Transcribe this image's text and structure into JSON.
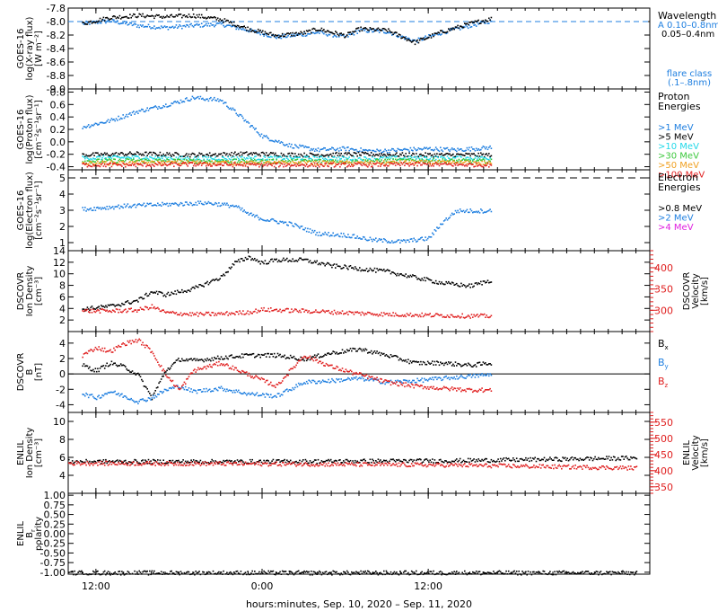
{
  "colors": {
    "black": "#000000",
    "blue": "#1f7fe0",
    "cyan": "#20d8e8",
    "green": "#3cc83c",
    "orange": "#f0a020",
    "red": "#e02020",
    "magenta": "#e020e0"
  },
  "footer": {
    "xlabel": "hours:minutes, Sep. 10, 2020 – Sep. 11, 2020"
  },
  "chart_data": [
    {
      "type": "scatter",
      "ylabel": "GOES-16 log(X-ray flux) [W m⁻²]",
      "ylabel_lines": [
        "GOES-16",
        "log(X-ray flux)",
        "[W m⁻²]"
      ],
      "ylim": [
        -9.0,
        -7.8
      ],
      "yticks": [
        "-7.8",
        "-8.0",
        "-8.2",
        "-8.4",
        "-8.6",
        "-8.8",
        "-9.0"
      ],
      "legend_title": [
        "Wavelength"
      ],
      "legend": [
        "A 0.10–0.8nm",
        "0.05–0.4nm"
      ],
      "annotation": [
        "flare class",
        "(.1–.8nm)"
      ],
      "flare_class_level": -8.0,
      "series": [
        {
          "name": "A 0.10–0.8nm",
          "color": "blue",
          "t": [
            -13,
            -11,
            -9,
            -7,
            -5,
            -3,
            -1,
            1,
            3,
            4,
            6,
            7,
            9,
            11,
            13,
            15,
            16.5
          ],
          "y": [
            -8.02,
            -7.98,
            -8.05,
            -8.08,
            -8.05,
            -8.03,
            -8.12,
            -8.22,
            -8.18,
            -8.15,
            -8.22,
            -8.12,
            -8.14,
            -8.28,
            -8.15,
            -8.05,
            -7.98
          ]
        },
        {
          "name": "0.05–0.4nm",
          "color": "black",
          "t": [
            -13,
            -11,
            -9,
            -7,
            -5,
            -3,
            -1,
            1,
            3,
            4,
            6,
            7,
            9,
            11,
            13,
            15,
            16.5
          ],
          "y": [
            -8.02,
            -7.93,
            -7.9,
            -7.92,
            -7.9,
            -7.96,
            -8.1,
            -8.2,
            -8.16,
            -8.1,
            -8.2,
            -8.1,
            -8.12,
            -8.3,
            -8.14,
            -8.02,
            -7.95
          ]
        }
      ]
    },
    {
      "type": "scatter",
      "ylabel": "GOES-16 log(Proton flux) [cm⁻²s⁻¹sr⁻¹]",
      "ylabel_lines": [
        "GOES-16",
        "log(Proton flux)",
        "[cm⁻²s⁻¹sr⁻¹]"
      ],
      "ylim": [
        -0.45,
        0.85
      ],
      "yticks": [
        "0.8",
        "0.6",
        "0.4",
        "0.2",
        "0.0",
        "-0.2",
        "-0.4"
      ],
      "legend_title": [
        "Proton",
        "Energies"
      ],
      "legend": [
        ">1 MeV",
        ">5 MeV",
        ">10 MeV",
        ">30 MeV",
        ">50 MeV",
        ">100 MeV"
      ],
      "series": [
        {
          "name": ">1 MeV",
          "color": "blue",
          "t": [
            -13,
            -11,
            -9,
            -7,
            -5,
            -3,
            -1.5,
            0,
            2,
            4,
            6,
            8,
            10,
            12,
            14,
            16.5
          ],
          "y": [
            0.25,
            0.35,
            0.5,
            0.6,
            0.72,
            0.68,
            0.4,
            0.1,
            -0.05,
            -0.12,
            -0.1,
            -0.14,
            -0.12,
            -0.1,
            -0.12,
            -0.08
          ]
        },
        {
          "name": ">5 MeV",
          "color": "black",
          "t": [
            -13,
            -9,
            -5,
            -1,
            3,
            7,
            11,
            16.5
          ],
          "y": [
            -0.2,
            -0.18,
            -0.2,
            -0.18,
            -0.2,
            -0.19,
            -0.2,
            -0.2
          ]
        },
        {
          "name": ">10 MeV",
          "color": "cyan",
          "t": [
            -13,
            -9,
            -5,
            -1,
            3,
            7,
            11,
            16.5
          ],
          "y": [
            -0.25,
            -0.24,
            -0.26,
            -0.25,
            -0.25,
            -0.26,
            -0.25,
            -0.25
          ]
        },
        {
          "name": ">30 MeV",
          "color": "green",
          "t": [
            -13,
            -9,
            -5,
            -1,
            3,
            7,
            11,
            16.5
          ],
          "y": [
            -0.3,
            -0.29,
            -0.3,
            -0.3,
            -0.3,
            -0.3,
            -0.29,
            -0.3
          ]
        },
        {
          "name": ">50 MeV",
          "color": "orange",
          "t": [
            -13,
            -9,
            -5,
            -1,
            3,
            7,
            11,
            16.5
          ],
          "y": [
            -0.33,
            -0.33,
            -0.32,
            -0.33,
            -0.33,
            -0.33,
            -0.32,
            -0.33
          ]
        },
        {
          "name": ">100 MeV",
          "color": "red",
          "t": [
            -13,
            -9,
            -5,
            -1,
            3,
            7,
            11,
            16.5
          ],
          "y": [
            -0.36,
            -0.36,
            -0.35,
            -0.36,
            -0.36,
            -0.36,
            -0.35,
            -0.36
          ]
        }
      ]
    },
    {
      "type": "scatter",
      "ylabel": "GOES-16 log(Electron flux) [cm⁻²s⁻¹sr⁻¹]",
      "ylabel_lines": [
        "GOES-16",
        "log(Electron flux)",
        "[cm⁻²s⁻¹sr⁻¹]"
      ],
      "ylim": [
        0.5,
        5.5
      ],
      "yticks": [
        "5",
        "4",
        "3",
        "2",
        "1"
      ],
      "legend_title": [
        "Electron",
        "Energies"
      ],
      "legend": [
        ">0.8 MeV",
        ">2 MeV",
        ">4 MeV"
      ],
      "threshold": 5.0,
      "series": [
        {
          "name": ">2 MeV",
          "color": "blue",
          "t": [
            -13,
            -10,
            -7,
            -4,
            -2,
            -1,
            0,
            2,
            3,
            4,
            6,
            8,
            10,
            12,
            13,
            14,
            16.5
          ],
          "y": [
            3.1,
            3.3,
            3.4,
            3.5,
            3.3,
            2.8,
            2.5,
            2.2,
            1.9,
            1.6,
            1.5,
            1.2,
            1.1,
            1.3,
            2.3,
            3.0,
            3.0
          ]
        }
      ]
    },
    {
      "type": "scatter",
      "ylabel": "DSCOVR Ion Density [cm⁻³]",
      "ylabel_lines": [
        "DSCOVR",
        "Ion Density",
        "[cm⁻³]"
      ],
      "ylim": [
        0,
        14
      ],
      "yticks": [
        "14",
        "12",
        "10",
        "8",
        "6",
        "4",
        "2"
      ],
      "right_ylabel_lines": [
        "DSCOVR",
        "Velocity",
        "[km/s]"
      ],
      "right_ylim": [
        250,
        440
      ],
      "right_yticks": [
        "400",
        "350",
        "300"
      ],
      "series": [
        {
          "name": "Ion Density",
          "color": "black",
          "t": [
            -13,
            -11,
            -9,
            -8,
            -7,
            -5,
            -3,
            -2,
            -1,
            0,
            1,
            3,
            5,
            7,
            9,
            11,
            13,
            15,
            16.5
          ],
          "y": [
            4.0,
            4.5,
            5.5,
            7.0,
            6.5,
            7.5,
            9.5,
            12.0,
            13.0,
            12.0,
            12.5,
            12.5,
            11.5,
            11.0,
            10.5,
            9.5,
            8.5,
            8.0,
            9.0
          ]
        },
        {
          "name": "Velocity",
          "color": "red",
          "axis": "right",
          "t": [
            -13,
            -11,
            -9,
            -8,
            -7,
            -5,
            -3,
            -1,
            0,
            3,
            6,
            9,
            12,
            15,
            16.5
          ],
          "y": [
            300,
            300,
            302,
            310,
            296,
            292,
            293,
            297,
            303,
            300,
            296,
            292,
            290,
            288,
            288
          ]
        }
      ]
    },
    {
      "type": "scatter",
      "ylabel": "DSCOVR B [nT]",
      "ylabel_lines": [
        "DSCOVR",
        "B",
        "[nT]"
      ],
      "ylim": [
        -5,
        5.5
      ],
      "yticks": [
        "4",
        "2",
        "0",
        "-2",
        "-4"
      ],
      "zero_line": true,
      "legend": [
        "B",
        "B",
        "B"
      ],
      "legend_sub": [
        "x",
        "y",
        "z"
      ],
      "series": [
        {
          "name": "Bx",
          "color": "black",
          "t": [
            -13,
            -12,
            -11,
            -10,
            -9,
            -8,
            -7,
            -6,
            -5,
            -3,
            -1,
            1,
            3,
            5,
            7,
            9,
            11,
            13,
            15,
            16.5
          ],
          "y": [
            1.2,
            0.5,
            1.5,
            1.0,
            0.0,
            -3.0,
            0.5,
            2.0,
            1.8,
            2.2,
            2.5,
            2.5,
            2.0,
            2.8,
            3.3,
            2.5,
            1.5,
            1.5,
            1.2,
            1.5
          ]
        },
        {
          "name": "By",
          "color": "blue",
          "t": [
            -13,
            -12,
            -11,
            -10,
            -9,
            -8,
            -7,
            -6,
            -5,
            -3,
            -1,
            1,
            3,
            5,
            7,
            9,
            11,
            13,
            15,
            16.5
          ],
          "y": [
            -2.5,
            -3.0,
            -2.2,
            -2.8,
            -3.5,
            -3.0,
            -2.0,
            -1.5,
            -2.2,
            -1.8,
            -2.5,
            -2.8,
            -1.0,
            -0.8,
            -0.5,
            -1.0,
            -0.8,
            -0.5,
            -0.2,
            0.0
          ]
        },
        {
          "name": "Bz",
          "color": "red",
          "t": [
            -13,
            -12,
            -11,
            -10,
            -9,
            -8,
            -7,
            -6,
            -5,
            -3,
            -1,
            1,
            3,
            5,
            7,
            9,
            11,
            13,
            15,
            16.5
          ],
          "y": [
            2.5,
            3.5,
            3.0,
            4.0,
            4.5,
            3.0,
            0.0,
            -2.0,
            0.5,
            1.5,
            0.0,
            -1.5,
            2.5,
            1.0,
            0.0,
            -1.0,
            -1.5,
            -1.8,
            -2.0,
            -2.0
          ]
        }
      ]
    },
    {
      "type": "scatter",
      "ylabel": "ENLIL Ion Density [cm⁻³]",
      "ylabel_lines": [
        "ENLIL",
        "Ion Density",
        "[cm⁻³]"
      ],
      "ylim": [
        2,
        11
      ],
      "yticks": [
        "10",
        "8",
        "6",
        "4"
      ],
      "right_ylabel_lines": [
        "ENLIL",
        "Velocity",
        "[km/s]"
      ],
      "right_ylim": [
        330,
        580
      ],
      "right_yticks": [
        "550",
        "500",
        "450",
        "400",
        "350"
      ],
      "series": [
        {
          "name": "Ion Density",
          "color": "black",
          "t": [
            -14,
            0,
            14,
            27
          ],
          "y": [
            5.6,
            5.6,
            5.7,
            6.0
          ]
        },
        {
          "name": "Velocity",
          "color": "red",
          "axis": "right",
          "t": [
            -14,
            0,
            14,
            27
          ],
          "y": [
            425,
            423,
            419,
            410
          ]
        }
      ]
    },
    {
      "type": "scatter",
      "ylabel": "ENLIL Br polarity",
      "ylabel_lines": [
        "ENLIL",
        "B",
        "polarity"
      ],
      "ylabel_sub": "r",
      "ylim": [
        -1.05,
        1.05
      ],
      "yticks": [
        "1.00",
        "0.75",
        "0.50",
        "0.25",
        "0.00",
        "-0.25",
        "-0.50",
        "-0.75",
        "-1.00"
      ],
      "series": [
        {
          "name": "polarity",
          "color": "black",
          "t": [
            -14,
            27
          ],
          "y": [
            -1.0,
            -1.0
          ]
        }
      ]
    }
  ],
  "xaxis": {
    "range_hours": [
      -14,
      28
    ],
    "ticks": [
      {
        "t": -12,
        "label": "12:00"
      },
      {
        "t": 0,
        "label": "0:00"
      },
      {
        "t": 12,
        "label": "12:00"
      }
    ]
  }
}
